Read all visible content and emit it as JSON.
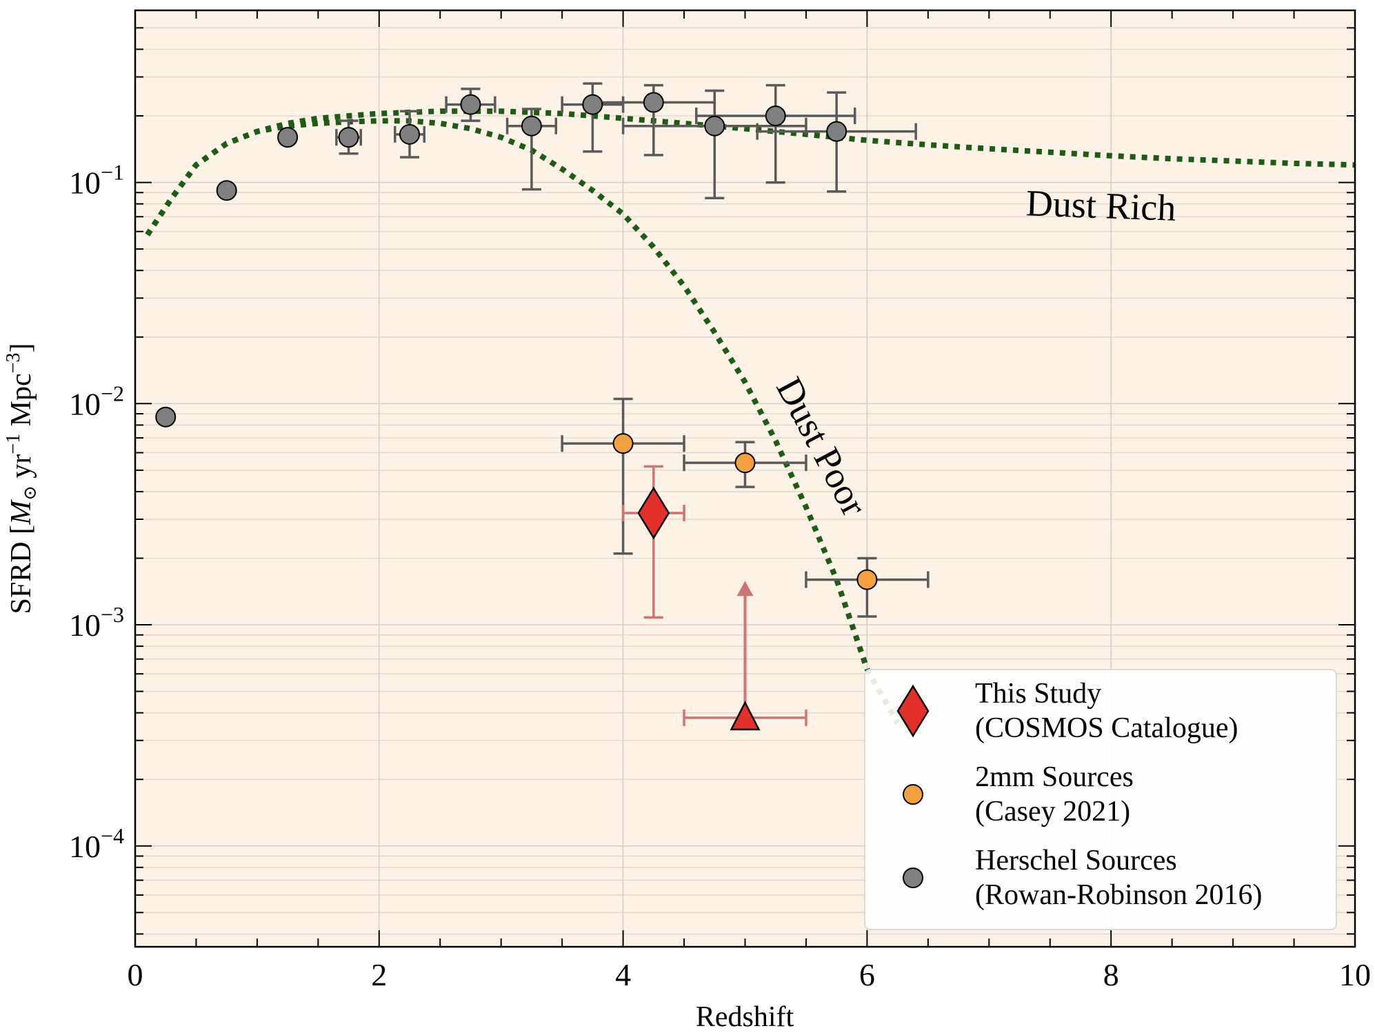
{
  "chart_data": {
    "type": "scatter",
    "xlabel": "Redshift",
    "ylabel": "SFRD [M⊙ yr⁻¹ Mpc⁻³]",
    "ylabel_parts": {
      "prefix": "SFRD [",
      "m": "M",
      "sun": "⊙",
      "yr": " yr",
      "e1": "−1",
      "mpc": " Mpc",
      "e2": "−3",
      "suffix": "]"
    },
    "xlim": [
      0,
      10
    ],
    "ylim": [
      3.5e-05,
      0.6
    ],
    "y_scale": "log",
    "x_ticks": [
      "0",
      "2",
      "4",
      "6",
      "8",
      "10"
    ],
    "y_ticks": [
      {
        "value": 0.1,
        "base": "10",
        "exp": "−1"
      },
      {
        "value": 0.01,
        "base": "10",
        "exp": "−2"
      },
      {
        "value": 0.001,
        "base": "10",
        "exp": "−3"
      },
      {
        "value": 0.0001,
        "base": "10",
        "exp": "−4"
      }
    ],
    "grid": true,
    "background": "#fcf3e6",
    "curves": [
      {
        "label": "Dust Rich",
        "color": "#1e5c14",
        "style": "dotted",
        "x": [
          0.1,
          0.3,
          0.5,
          0.75,
          1.0,
          1.25,
          1.5,
          1.75,
          2.0,
          2.5,
          3.0,
          3.5,
          4.0,
          4.5,
          5.0,
          5.5,
          6.0,
          6.5,
          7.0,
          7.5,
          8.0,
          8.5,
          9.0,
          9.5,
          10.0
        ],
        "y": [
          0.058,
          0.085,
          0.12,
          0.15,
          0.17,
          0.185,
          0.195,
          0.2,
          0.205,
          0.21,
          0.21,
          0.205,
          0.195,
          0.185,
          0.175,
          0.165,
          0.155,
          0.148,
          0.142,
          0.137,
          0.132,
          0.128,
          0.125,
          0.122,
          0.12
        ]
      },
      {
        "label": "Dust Poor",
        "color": "#1e5c14",
        "style": "dotted",
        "x": [
          0.1,
          0.3,
          0.5,
          0.75,
          1.0,
          1.25,
          1.5,
          1.75,
          2.0,
          2.25,
          2.5,
          2.75,
          3.0,
          3.25,
          3.5,
          3.75,
          4.0,
          4.25,
          4.5,
          4.75,
          5.0,
          5.25,
          5.5,
          5.75,
          6.0,
          6.25
        ],
        "y": [
          0.058,
          0.085,
          0.12,
          0.15,
          0.17,
          0.18,
          0.185,
          0.188,
          0.19,
          0.19,
          0.185,
          0.175,
          0.16,
          0.14,
          0.115,
          0.092,
          0.072,
          0.051,
          0.034,
          0.021,
          0.0125,
          0.0068,
          0.0034,
          0.0016,
          0.00063,
          0.00036
        ]
      }
    ],
    "curve_labels": [
      {
        "text": "Dust Rich",
        "x": 7.3,
        "y": 0.071,
        "angle": 2
      },
      {
        "text": "Dust Poor",
        "x": 5.25,
        "y": 0.012,
        "angle": 62
      }
    ],
    "series": [
      {
        "name": "Herschel Sources",
        "name_line2": "(Rowan-Robinson 2016)",
        "marker": "circle",
        "color": "#808080",
        "err_color": "#5a5a5a",
        "points": [
          {
            "x": 0.25,
            "y": 0.0087
          },
          {
            "x": 0.75,
            "y": 0.092
          },
          {
            "x": 1.25,
            "y": 0.16
          },
          {
            "x": 1.75,
            "y": 0.16,
            "xerr": 0.1,
            "yerr_lo": 0.135,
            "yerr_hi": 0.19
          },
          {
            "x": 2.25,
            "y": 0.165,
            "xerr": 0.12,
            "yerr_lo": 0.13,
            "yerr_hi": 0.21
          },
          {
            "x": 2.75,
            "y": 0.225,
            "xerr": 0.2,
            "yerr_lo": 0.19,
            "yerr_hi": 0.265
          },
          {
            "x": 3.25,
            "y": 0.18,
            "xerr": 0.2,
            "yerr_lo": 0.093,
            "yerr_hi": 0.215
          },
          {
            "x": 3.75,
            "y": 0.225,
            "xerr": 0.25,
            "yerr_lo": 0.138,
            "yerr_hi": 0.28
          },
          {
            "x": 4.25,
            "y": 0.23,
            "xerr": 0.5,
            "yerr_lo": 0.133,
            "yerr_hi": 0.275
          },
          {
            "x": 4.75,
            "y": 0.18,
            "xerr": 0.75,
            "yerr_lo": 0.085,
            "yerr_hi": 0.26
          },
          {
            "x": 5.25,
            "y": 0.2,
            "xerr": 0.65,
            "yerr_lo": 0.1,
            "yerr_hi": 0.275
          },
          {
            "x": 5.75,
            "y": 0.17,
            "xerr": 0.65,
            "yerr_lo": 0.091,
            "yerr_hi": 0.255
          }
        ]
      },
      {
        "name": "2mm Sources",
        "name_line2": "(Casey 2021)",
        "marker": "circle",
        "color": "#f3a040",
        "err_color": "#5a5a5a",
        "points": [
          {
            "x": 4.0,
            "y": 0.0066,
            "xerr": 0.5,
            "yerr_lo": 0.0021,
            "yerr_hi": 0.0105
          },
          {
            "x": 5.0,
            "y": 0.0054,
            "xerr": 0.5,
            "yerr_lo": 0.0042,
            "yerr_hi": 0.0067
          },
          {
            "x": 6.0,
            "y": 0.0016,
            "xerr": 0.5,
            "yerr_lo": 0.00109,
            "yerr_hi": 0.002
          }
        ]
      },
      {
        "name": "This Study",
        "name_line2": "(COSMOS Catalogue)",
        "marker": "diamond",
        "color": "#e4302a",
        "err_color": "#cd7572",
        "points": [
          {
            "x": 4.25,
            "y": 0.0032,
            "xerr": 0.25,
            "yerr_lo": 0.00108,
            "yerr_hi": 0.0052
          }
        ],
        "lower_limits": [
          {
            "x": 5.0,
            "y": 0.00038,
            "xerr": 0.5,
            "arrow_to": 0.00158,
            "marker": "triangle"
          }
        ]
      }
    ],
    "legend": {
      "placement": "lower-right",
      "order": [
        "This Study",
        "2mm Sources",
        "Herschel Sources"
      ]
    }
  }
}
